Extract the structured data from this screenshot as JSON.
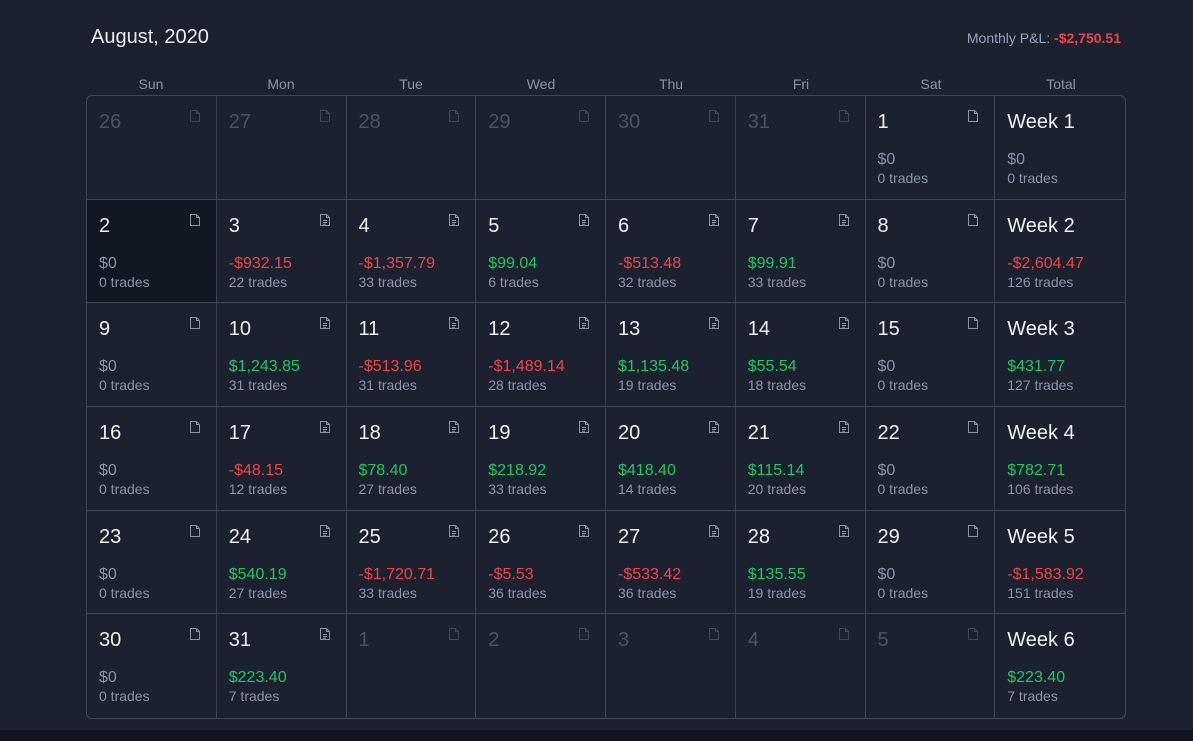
{
  "header": {
    "title": "August, 2020",
    "monthly_label": "Monthly P&L:",
    "monthly_value": "-$2,750.51"
  },
  "weekdays": [
    "Sun",
    "Mon",
    "Tue",
    "Wed",
    "Thu",
    "Fri",
    "Sat",
    "Total"
  ],
  "colors": {
    "positive": "#22c55e",
    "negative": "#ef4444",
    "muted": "#8a94a6"
  },
  "weeks": [
    {
      "days": [
        {
          "day": "26",
          "muted": true
        },
        {
          "day": "27",
          "muted": true
        },
        {
          "day": "28",
          "muted": true
        },
        {
          "day": "29",
          "muted": true
        },
        {
          "day": "30",
          "muted": true
        },
        {
          "day": "31",
          "muted": true
        },
        {
          "day": "1",
          "pnl": "$0",
          "trades": "0 trades",
          "sign": "zero",
          "icon": "blank"
        }
      ],
      "total": {
        "label": "Week 1",
        "pnl": "$0",
        "trades": "0 trades",
        "sign": "zero"
      }
    },
    {
      "days": [
        {
          "day": "2",
          "pnl": "$0",
          "trades": "0 trades",
          "sign": "zero",
          "icon": "blank",
          "selected": true
        },
        {
          "day": "3",
          "pnl": "-$932.15",
          "trades": "22 trades",
          "sign": "neg",
          "icon": "note"
        },
        {
          "day": "4",
          "pnl": "-$1,357.79",
          "trades": "33 trades",
          "sign": "neg",
          "icon": "note"
        },
        {
          "day": "5",
          "pnl": "$99.04",
          "trades": "6 trades",
          "sign": "pos",
          "icon": "note"
        },
        {
          "day": "6",
          "pnl": "-$513.48",
          "trades": "32 trades",
          "sign": "neg",
          "icon": "note"
        },
        {
          "day": "7",
          "pnl": "$99.91",
          "trades": "33 trades",
          "sign": "pos",
          "icon": "note"
        },
        {
          "day": "8",
          "pnl": "$0",
          "trades": "0 trades",
          "sign": "zero",
          "icon": "blank"
        }
      ],
      "total": {
        "label": "Week 2",
        "pnl": "-$2,604.47",
        "trades": "126 trades",
        "sign": "neg"
      }
    },
    {
      "days": [
        {
          "day": "9",
          "pnl": "$0",
          "trades": "0 trades",
          "sign": "zero",
          "icon": "blank"
        },
        {
          "day": "10",
          "pnl": "$1,243.85",
          "trades": "31 trades",
          "sign": "pos",
          "icon": "note"
        },
        {
          "day": "11",
          "pnl": "-$513.96",
          "trades": "31 trades",
          "sign": "neg",
          "icon": "note"
        },
        {
          "day": "12",
          "pnl": "-$1,489.14",
          "trades": "28 trades",
          "sign": "neg",
          "icon": "note"
        },
        {
          "day": "13",
          "pnl": "$1,135.48",
          "trades": "19 trades",
          "sign": "pos",
          "icon": "note"
        },
        {
          "day": "14",
          "pnl": "$55.54",
          "trades": "18 trades",
          "sign": "pos",
          "icon": "note"
        },
        {
          "day": "15",
          "pnl": "$0",
          "trades": "0 trades",
          "sign": "zero",
          "icon": "blank"
        }
      ],
      "total": {
        "label": "Week 3",
        "pnl": "$431.77",
        "trades": "127 trades",
        "sign": "pos"
      }
    },
    {
      "days": [
        {
          "day": "16",
          "pnl": "$0",
          "trades": "0 trades",
          "sign": "zero",
          "icon": "blank"
        },
        {
          "day": "17",
          "pnl": "-$48.15",
          "trades": "12 trades",
          "sign": "neg",
          "icon": "note"
        },
        {
          "day": "18",
          "pnl": "$78.40",
          "trades": "27 trades",
          "sign": "pos",
          "icon": "note"
        },
        {
          "day": "19",
          "pnl": "$218.92",
          "trades": "33 trades",
          "sign": "pos",
          "icon": "note"
        },
        {
          "day": "20",
          "pnl": "$418.40",
          "trades": "14 trades",
          "sign": "pos",
          "icon": "note"
        },
        {
          "day": "21",
          "pnl": "$115.14",
          "trades": "20 trades",
          "sign": "pos",
          "icon": "note"
        },
        {
          "day": "22",
          "pnl": "$0",
          "trades": "0 trades",
          "sign": "zero",
          "icon": "blank"
        }
      ],
      "total": {
        "label": "Week 4",
        "pnl": "$782.71",
        "trades": "106 trades",
        "sign": "pos"
      }
    },
    {
      "days": [
        {
          "day": "23",
          "pnl": "$0",
          "trades": "0 trades",
          "sign": "zero",
          "icon": "blank"
        },
        {
          "day": "24",
          "pnl": "$540.19",
          "trades": "27 trades",
          "sign": "pos",
          "icon": "note"
        },
        {
          "day": "25",
          "pnl": "-$1,720.71",
          "trades": "33 trades",
          "sign": "neg",
          "icon": "note"
        },
        {
          "day": "26",
          "pnl": "-$5.53",
          "trades": "36 trades",
          "sign": "neg",
          "icon": "note"
        },
        {
          "day": "27",
          "pnl": "-$533.42",
          "trades": "36 trades",
          "sign": "neg",
          "icon": "note"
        },
        {
          "day": "28",
          "pnl": "$135.55",
          "trades": "19 trades",
          "sign": "pos",
          "icon": "note"
        },
        {
          "day": "29",
          "pnl": "$0",
          "trades": "0 trades",
          "sign": "zero",
          "icon": "blank"
        }
      ],
      "total": {
        "label": "Week 5",
        "pnl": "-$1,583.92",
        "trades": "151 trades",
        "sign": "neg"
      }
    },
    {
      "days": [
        {
          "day": "30",
          "pnl": "$0",
          "trades": "0 trades",
          "sign": "zero",
          "icon": "blank"
        },
        {
          "day": "31",
          "pnl": "$223.40",
          "trades": "7 trades",
          "sign": "pos",
          "icon": "note"
        },
        {
          "day": "1",
          "muted": true
        },
        {
          "day": "2",
          "muted": true
        },
        {
          "day": "3",
          "muted": true
        },
        {
          "day": "4",
          "muted": true
        },
        {
          "day": "5",
          "muted": true
        }
      ],
      "total": {
        "label": "Week 6",
        "pnl": "$223.40",
        "trades": "7 trades",
        "sign": "pos"
      }
    }
  ]
}
